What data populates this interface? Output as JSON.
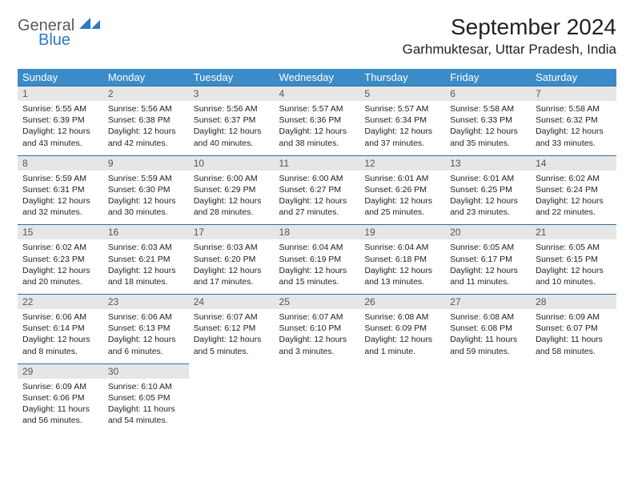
{
  "logo": {
    "word1": "General",
    "word2": "Blue"
  },
  "title": "September 2024",
  "subtitle": "Garhmuktesar, Uttar Pradesh, India",
  "colors": {
    "header_bg": "#3b8bc9",
    "header_fg": "#ffffff",
    "daynum_bg": "#e6e6e6",
    "daynum_fg": "#555555",
    "rule": "#2b6fa6",
    "logo_gray": "#5a5a5a",
    "logo_blue": "#2b7bbf"
  },
  "day_names": [
    "Sunday",
    "Monday",
    "Tuesday",
    "Wednesday",
    "Thursday",
    "Friday",
    "Saturday"
  ],
  "weeks": [
    [
      {
        "n": "1",
        "sr": "Sunrise: 5:55 AM",
        "ss": "Sunset: 6:39 PM",
        "d1": "Daylight: 12 hours",
        "d2": "and 43 minutes."
      },
      {
        "n": "2",
        "sr": "Sunrise: 5:56 AM",
        "ss": "Sunset: 6:38 PM",
        "d1": "Daylight: 12 hours",
        "d2": "and 42 minutes."
      },
      {
        "n": "3",
        "sr": "Sunrise: 5:56 AM",
        "ss": "Sunset: 6:37 PM",
        "d1": "Daylight: 12 hours",
        "d2": "and 40 minutes."
      },
      {
        "n": "4",
        "sr": "Sunrise: 5:57 AM",
        "ss": "Sunset: 6:36 PM",
        "d1": "Daylight: 12 hours",
        "d2": "and 38 minutes."
      },
      {
        "n": "5",
        "sr": "Sunrise: 5:57 AM",
        "ss": "Sunset: 6:34 PM",
        "d1": "Daylight: 12 hours",
        "d2": "and 37 minutes."
      },
      {
        "n": "6",
        "sr": "Sunrise: 5:58 AM",
        "ss": "Sunset: 6:33 PM",
        "d1": "Daylight: 12 hours",
        "d2": "and 35 minutes."
      },
      {
        "n": "7",
        "sr": "Sunrise: 5:58 AM",
        "ss": "Sunset: 6:32 PM",
        "d1": "Daylight: 12 hours",
        "d2": "and 33 minutes."
      }
    ],
    [
      {
        "n": "8",
        "sr": "Sunrise: 5:59 AM",
        "ss": "Sunset: 6:31 PM",
        "d1": "Daylight: 12 hours",
        "d2": "and 32 minutes."
      },
      {
        "n": "9",
        "sr": "Sunrise: 5:59 AM",
        "ss": "Sunset: 6:30 PM",
        "d1": "Daylight: 12 hours",
        "d2": "and 30 minutes."
      },
      {
        "n": "10",
        "sr": "Sunrise: 6:00 AM",
        "ss": "Sunset: 6:29 PM",
        "d1": "Daylight: 12 hours",
        "d2": "and 28 minutes."
      },
      {
        "n": "11",
        "sr": "Sunrise: 6:00 AM",
        "ss": "Sunset: 6:27 PM",
        "d1": "Daylight: 12 hours",
        "d2": "and 27 minutes."
      },
      {
        "n": "12",
        "sr": "Sunrise: 6:01 AM",
        "ss": "Sunset: 6:26 PM",
        "d1": "Daylight: 12 hours",
        "d2": "and 25 minutes."
      },
      {
        "n": "13",
        "sr": "Sunrise: 6:01 AM",
        "ss": "Sunset: 6:25 PM",
        "d1": "Daylight: 12 hours",
        "d2": "and 23 minutes."
      },
      {
        "n": "14",
        "sr": "Sunrise: 6:02 AM",
        "ss": "Sunset: 6:24 PM",
        "d1": "Daylight: 12 hours",
        "d2": "and 22 minutes."
      }
    ],
    [
      {
        "n": "15",
        "sr": "Sunrise: 6:02 AM",
        "ss": "Sunset: 6:23 PM",
        "d1": "Daylight: 12 hours",
        "d2": "and 20 minutes."
      },
      {
        "n": "16",
        "sr": "Sunrise: 6:03 AM",
        "ss": "Sunset: 6:21 PM",
        "d1": "Daylight: 12 hours",
        "d2": "and 18 minutes."
      },
      {
        "n": "17",
        "sr": "Sunrise: 6:03 AM",
        "ss": "Sunset: 6:20 PM",
        "d1": "Daylight: 12 hours",
        "d2": "and 17 minutes."
      },
      {
        "n": "18",
        "sr": "Sunrise: 6:04 AM",
        "ss": "Sunset: 6:19 PM",
        "d1": "Daylight: 12 hours",
        "d2": "and 15 minutes."
      },
      {
        "n": "19",
        "sr": "Sunrise: 6:04 AM",
        "ss": "Sunset: 6:18 PM",
        "d1": "Daylight: 12 hours",
        "d2": "and 13 minutes."
      },
      {
        "n": "20",
        "sr": "Sunrise: 6:05 AM",
        "ss": "Sunset: 6:17 PM",
        "d1": "Daylight: 12 hours",
        "d2": "and 11 minutes."
      },
      {
        "n": "21",
        "sr": "Sunrise: 6:05 AM",
        "ss": "Sunset: 6:15 PM",
        "d1": "Daylight: 12 hours",
        "d2": "and 10 minutes."
      }
    ],
    [
      {
        "n": "22",
        "sr": "Sunrise: 6:06 AM",
        "ss": "Sunset: 6:14 PM",
        "d1": "Daylight: 12 hours",
        "d2": "and 8 minutes."
      },
      {
        "n": "23",
        "sr": "Sunrise: 6:06 AM",
        "ss": "Sunset: 6:13 PM",
        "d1": "Daylight: 12 hours",
        "d2": "and 6 minutes."
      },
      {
        "n": "24",
        "sr": "Sunrise: 6:07 AM",
        "ss": "Sunset: 6:12 PM",
        "d1": "Daylight: 12 hours",
        "d2": "and 5 minutes."
      },
      {
        "n": "25",
        "sr": "Sunrise: 6:07 AM",
        "ss": "Sunset: 6:10 PM",
        "d1": "Daylight: 12 hours",
        "d2": "and 3 minutes."
      },
      {
        "n": "26",
        "sr": "Sunrise: 6:08 AM",
        "ss": "Sunset: 6:09 PM",
        "d1": "Daylight: 12 hours",
        "d2": "and 1 minute."
      },
      {
        "n": "27",
        "sr": "Sunrise: 6:08 AM",
        "ss": "Sunset: 6:08 PM",
        "d1": "Daylight: 11 hours",
        "d2": "and 59 minutes."
      },
      {
        "n": "28",
        "sr": "Sunrise: 6:09 AM",
        "ss": "Sunset: 6:07 PM",
        "d1": "Daylight: 11 hours",
        "d2": "and 58 minutes."
      }
    ],
    [
      {
        "n": "29",
        "sr": "Sunrise: 6:09 AM",
        "ss": "Sunset: 6:06 PM",
        "d1": "Daylight: 11 hours",
        "d2": "and 56 minutes."
      },
      {
        "n": "30",
        "sr": "Sunrise: 6:10 AM",
        "ss": "Sunset: 6:05 PM",
        "d1": "Daylight: 11 hours",
        "d2": "and 54 minutes."
      },
      {
        "empty": true
      },
      {
        "empty": true
      },
      {
        "empty": true
      },
      {
        "empty": true
      },
      {
        "empty": true
      }
    ]
  ]
}
